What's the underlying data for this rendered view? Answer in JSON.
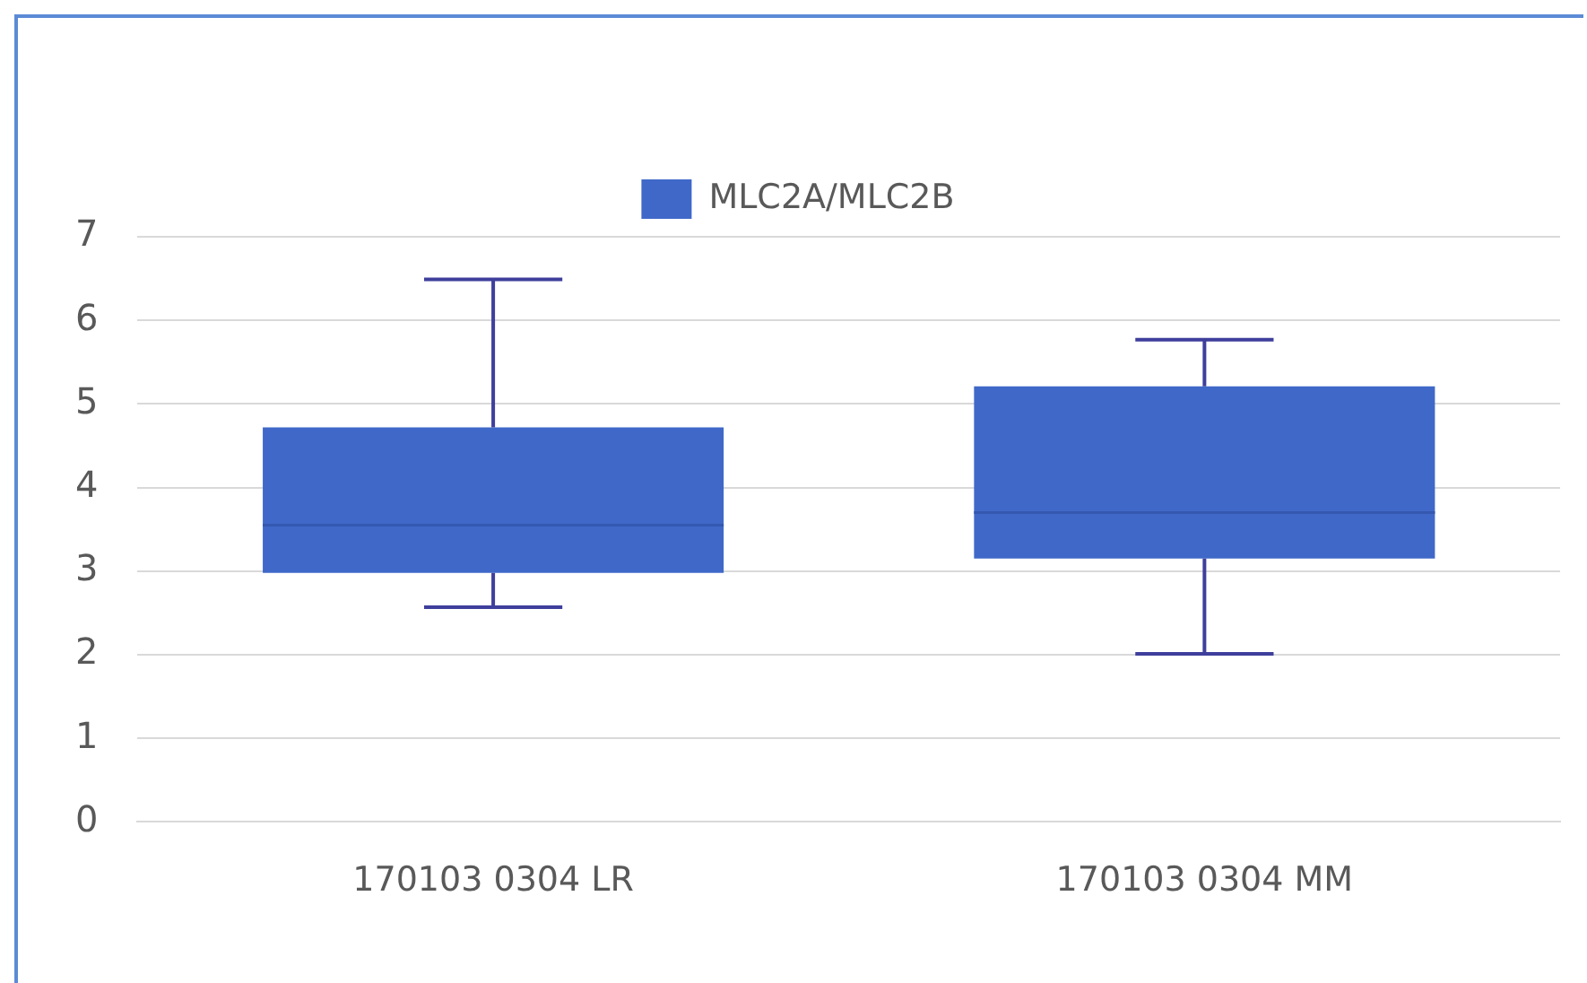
{
  "chart_data": {
    "type": "box",
    "categories": [
      "170103 0304 LR",
      "170103 0304 MM"
    ],
    "series": [
      {
        "name": "MLC2A/MLC2B",
        "color": "#3f68c8",
        "boxes": [
          {
            "low": 2.57,
            "q1": 2.98,
            "median": 3.55,
            "q3": 4.72,
            "high": 6.49
          },
          {
            "low": 2.01,
            "q1": 3.15,
            "median": 3.7,
            "q3": 5.21,
            "high": 5.77
          }
        ]
      }
    ],
    "ylim": [
      0,
      7
    ],
    "yticks": [
      0,
      1,
      2,
      3,
      4,
      5,
      6,
      7
    ],
    "grid": "y",
    "legend": "top"
  }
}
